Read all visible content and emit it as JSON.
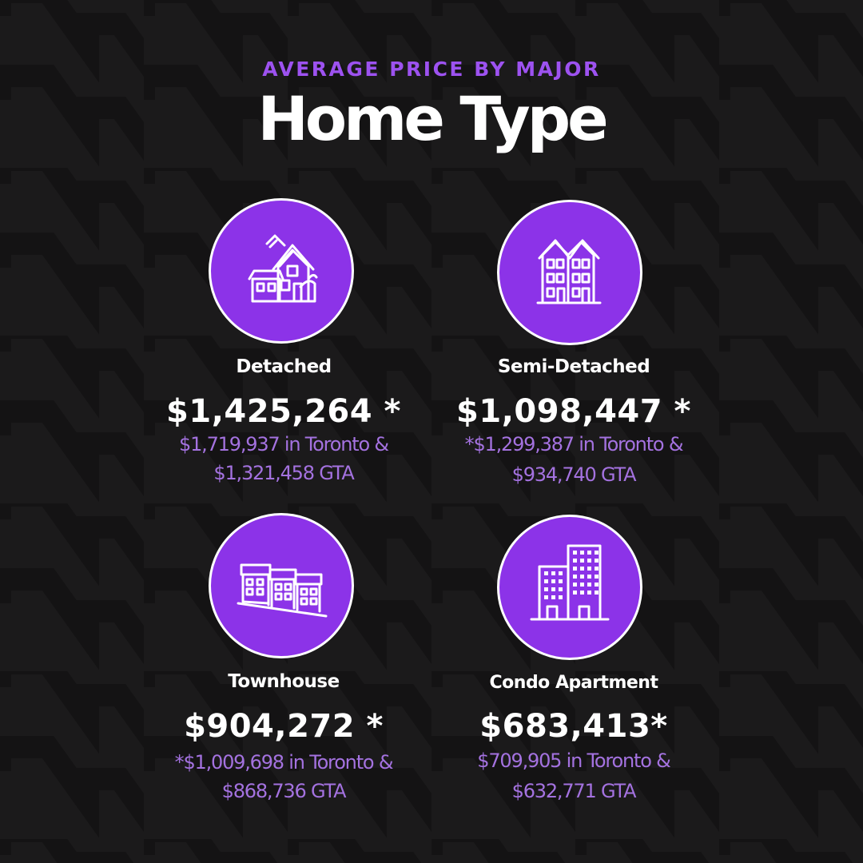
{
  "header": {
    "subtitle": "AVERAGE PRICE BY MAJOR",
    "title": "Home Type"
  },
  "colors": {
    "background": "#1b1a1b",
    "accent": "#8c33e8",
    "subtitle": "#9d52f0",
    "detail_text": "#a472e0",
    "text": "#ffffff"
  },
  "cards": [
    {
      "icon": "detached-house-icon",
      "label": "Detached",
      "price": "$1,425,264 *",
      "detail_line1": "$1,719,937  in Toronto  &",
      "detail_line2": "$1,321,458 GTA"
    },
    {
      "icon": "semi-detached-house-icon",
      "label": "Semi-Detached",
      "price": "$1,098,447 *",
      "detail_line1": "*$1,299,387  in Toronto &",
      "detail_line2": "$934,740 GTA"
    },
    {
      "icon": "townhouse-icon",
      "label": "Townhouse",
      "price": "$904,272 *",
      "detail_line1": "*$1,009,698 in Toronto &",
      "detail_line2": "$868,736 GTA"
    },
    {
      "icon": "condo-apartment-icon",
      "label": "Condo Apartment",
      "price": "$683,413*",
      "detail_line1": "$709,905  in Toronto &",
      "detail_line2": "$632,771  GTA"
    }
  ]
}
